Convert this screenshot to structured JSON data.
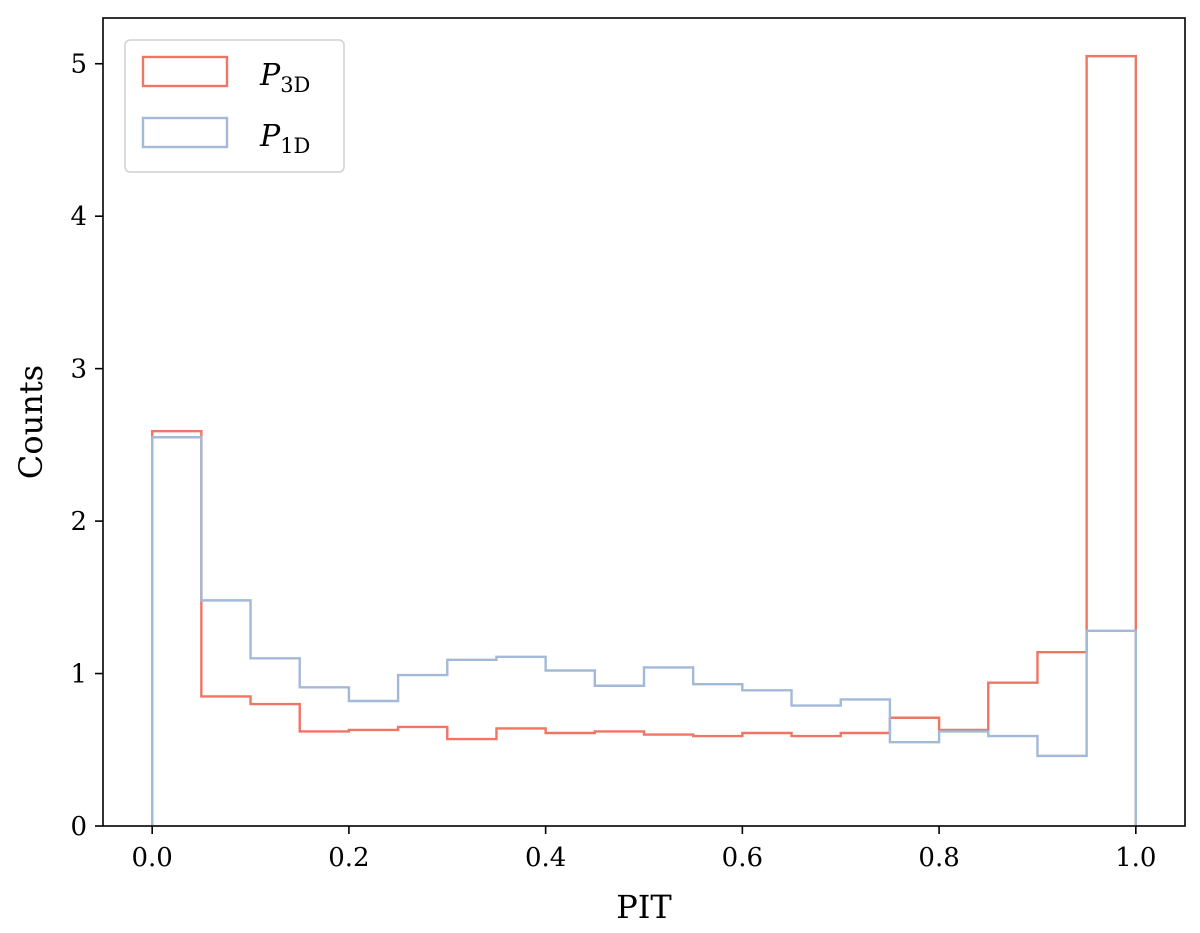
{
  "chart_data": {
    "type": "step-histogram",
    "title": "",
    "xlabel": "PIT",
    "ylabel": "Counts",
    "xlim": [
      -0.05,
      1.05
    ],
    "ylim": [
      0,
      5.3
    ],
    "xticks": [
      0.0,
      0.2,
      0.4,
      0.6,
      0.8,
      1.0
    ],
    "xtick_labels": [
      "0.0",
      "0.2",
      "0.4",
      "0.6",
      "0.8",
      "1.0"
    ],
    "yticks": [
      0,
      1,
      2,
      3,
      4,
      5
    ],
    "ytick_labels": [
      "0",
      "1",
      "2",
      "3",
      "4",
      "5"
    ],
    "grid": false,
    "legend_position": "top-left",
    "bin_edges": [
      0.0,
      0.05,
      0.1,
      0.15,
      0.2,
      0.25,
      0.3,
      0.35,
      0.4,
      0.45,
      0.5,
      0.55,
      0.6,
      0.65,
      0.7,
      0.75,
      0.8,
      0.85,
      0.9,
      0.95,
      1.0
    ],
    "series": [
      {
        "name": "P3D",
        "legend_main": "P",
        "legend_sub": "3D",
        "color": "#f07565",
        "values": [
          2.59,
          0.85,
          0.8,
          0.62,
          0.63,
          0.65,
          0.57,
          0.64,
          0.61,
          0.62,
          0.6,
          0.59,
          0.61,
          0.59,
          0.61,
          0.71,
          0.63,
          0.94,
          1.14,
          5.05
        ]
      },
      {
        "name": "P1D",
        "legend_main": "P",
        "legend_sub": "1D",
        "color": "#a3b9d8",
        "values": [
          2.55,
          1.48,
          1.1,
          0.91,
          0.82,
          0.99,
          1.09,
          1.11,
          1.02,
          0.92,
          1.04,
          0.93,
          0.89,
          0.79,
          0.83,
          0.55,
          0.62,
          0.59,
          0.46,
          1.28
        ]
      }
    ]
  }
}
